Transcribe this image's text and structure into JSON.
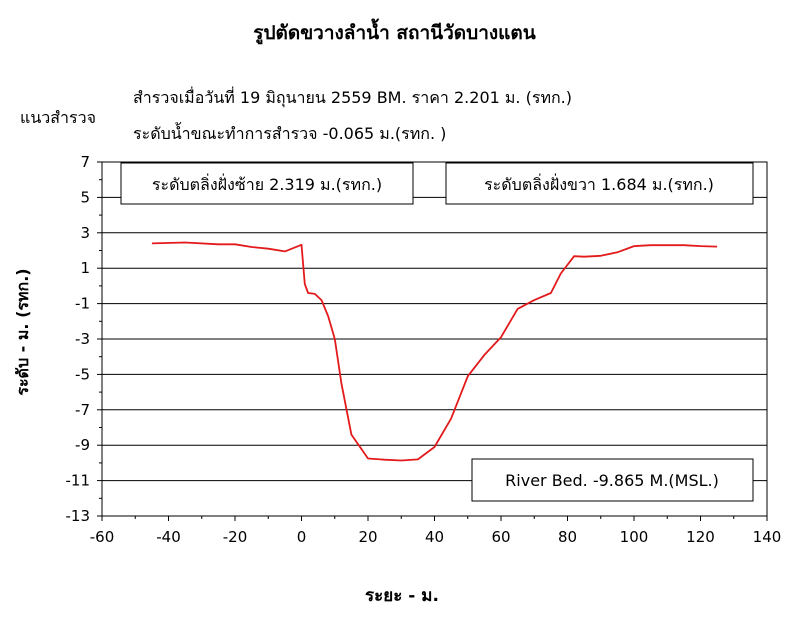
{
  "header": {
    "title": "รูปตัดขวางลำน้ำ  สถานีวัดบางแตน",
    "survey_date_line": "สำรวจเมื่อวันที่  19  มิถุนายน  2559   BM. ราคา   2.201  ม. (รทก.)",
    "section_label": "แนวสำรวจ",
    "water_level_line": "ระดับน้ำขณะทำการสำรวจ   -0.065  ม.(รทก. )"
  },
  "annotations": {
    "left_bank": "ระดับตลิ่งฝั่งซ้าย  2.319   ม.(รทก.)",
    "right_bank": "ระดับตลิ่งฝั่งขวา  1.684   ม.(รทก.)",
    "river_bed": "River Bed.  -9.865  M.(MSL.)"
  },
  "chart_data": {
    "type": "line",
    "title": "รูปตัดขวางลำน้ำ  สถานีวัดบางแตน",
    "xlabel": "ระยะ - ม.",
    "ylabel": "ระดับ - ม. (รทก.)",
    "xlim": [
      -60,
      140
    ],
    "ylim": [
      -13,
      7
    ],
    "xticks": [
      -60,
      -40,
      -20,
      0,
      20,
      40,
      60,
      80,
      100,
      120,
      140
    ],
    "yticks": [
      7,
      5,
      3,
      1,
      -1,
      -3,
      -5,
      -7,
      -9,
      -11,
      -13
    ],
    "grid": "horizontal",
    "line_color": "#e31a1c",
    "series": [
      {
        "x": [
          -45,
          -35,
          -25,
          -20,
          -15,
          -10,
          -5,
          0,
          1,
          2,
          4,
          6,
          8,
          10,
          12,
          15,
          20,
          25,
          30,
          35,
          40,
          45,
          50,
          55,
          60,
          65,
          70,
          75,
          78,
          82,
          85,
          90,
          95,
          100,
          105,
          110,
          115,
          120,
          125
        ],
        "y": [
          2.4,
          2.45,
          2.35,
          2.35,
          2.2,
          2.1,
          1.95,
          2.32,
          0.1,
          -0.4,
          -0.45,
          -0.8,
          -1.7,
          -3.0,
          -5.5,
          -8.4,
          -9.75,
          -9.82,
          -9.865,
          -9.8,
          -9.1,
          -7.5,
          -5.1,
          -3.9,
          -2.9,
          -1.3,
          -0.8,
          -0.4,
          0.7,
          1.68,
          1.65,
          1.7,
          1.9,
          2.25,
          2.3,
          2.3,
          2.3,
          2.25,
          2.22
        ]
      }
    ]
  }
}
